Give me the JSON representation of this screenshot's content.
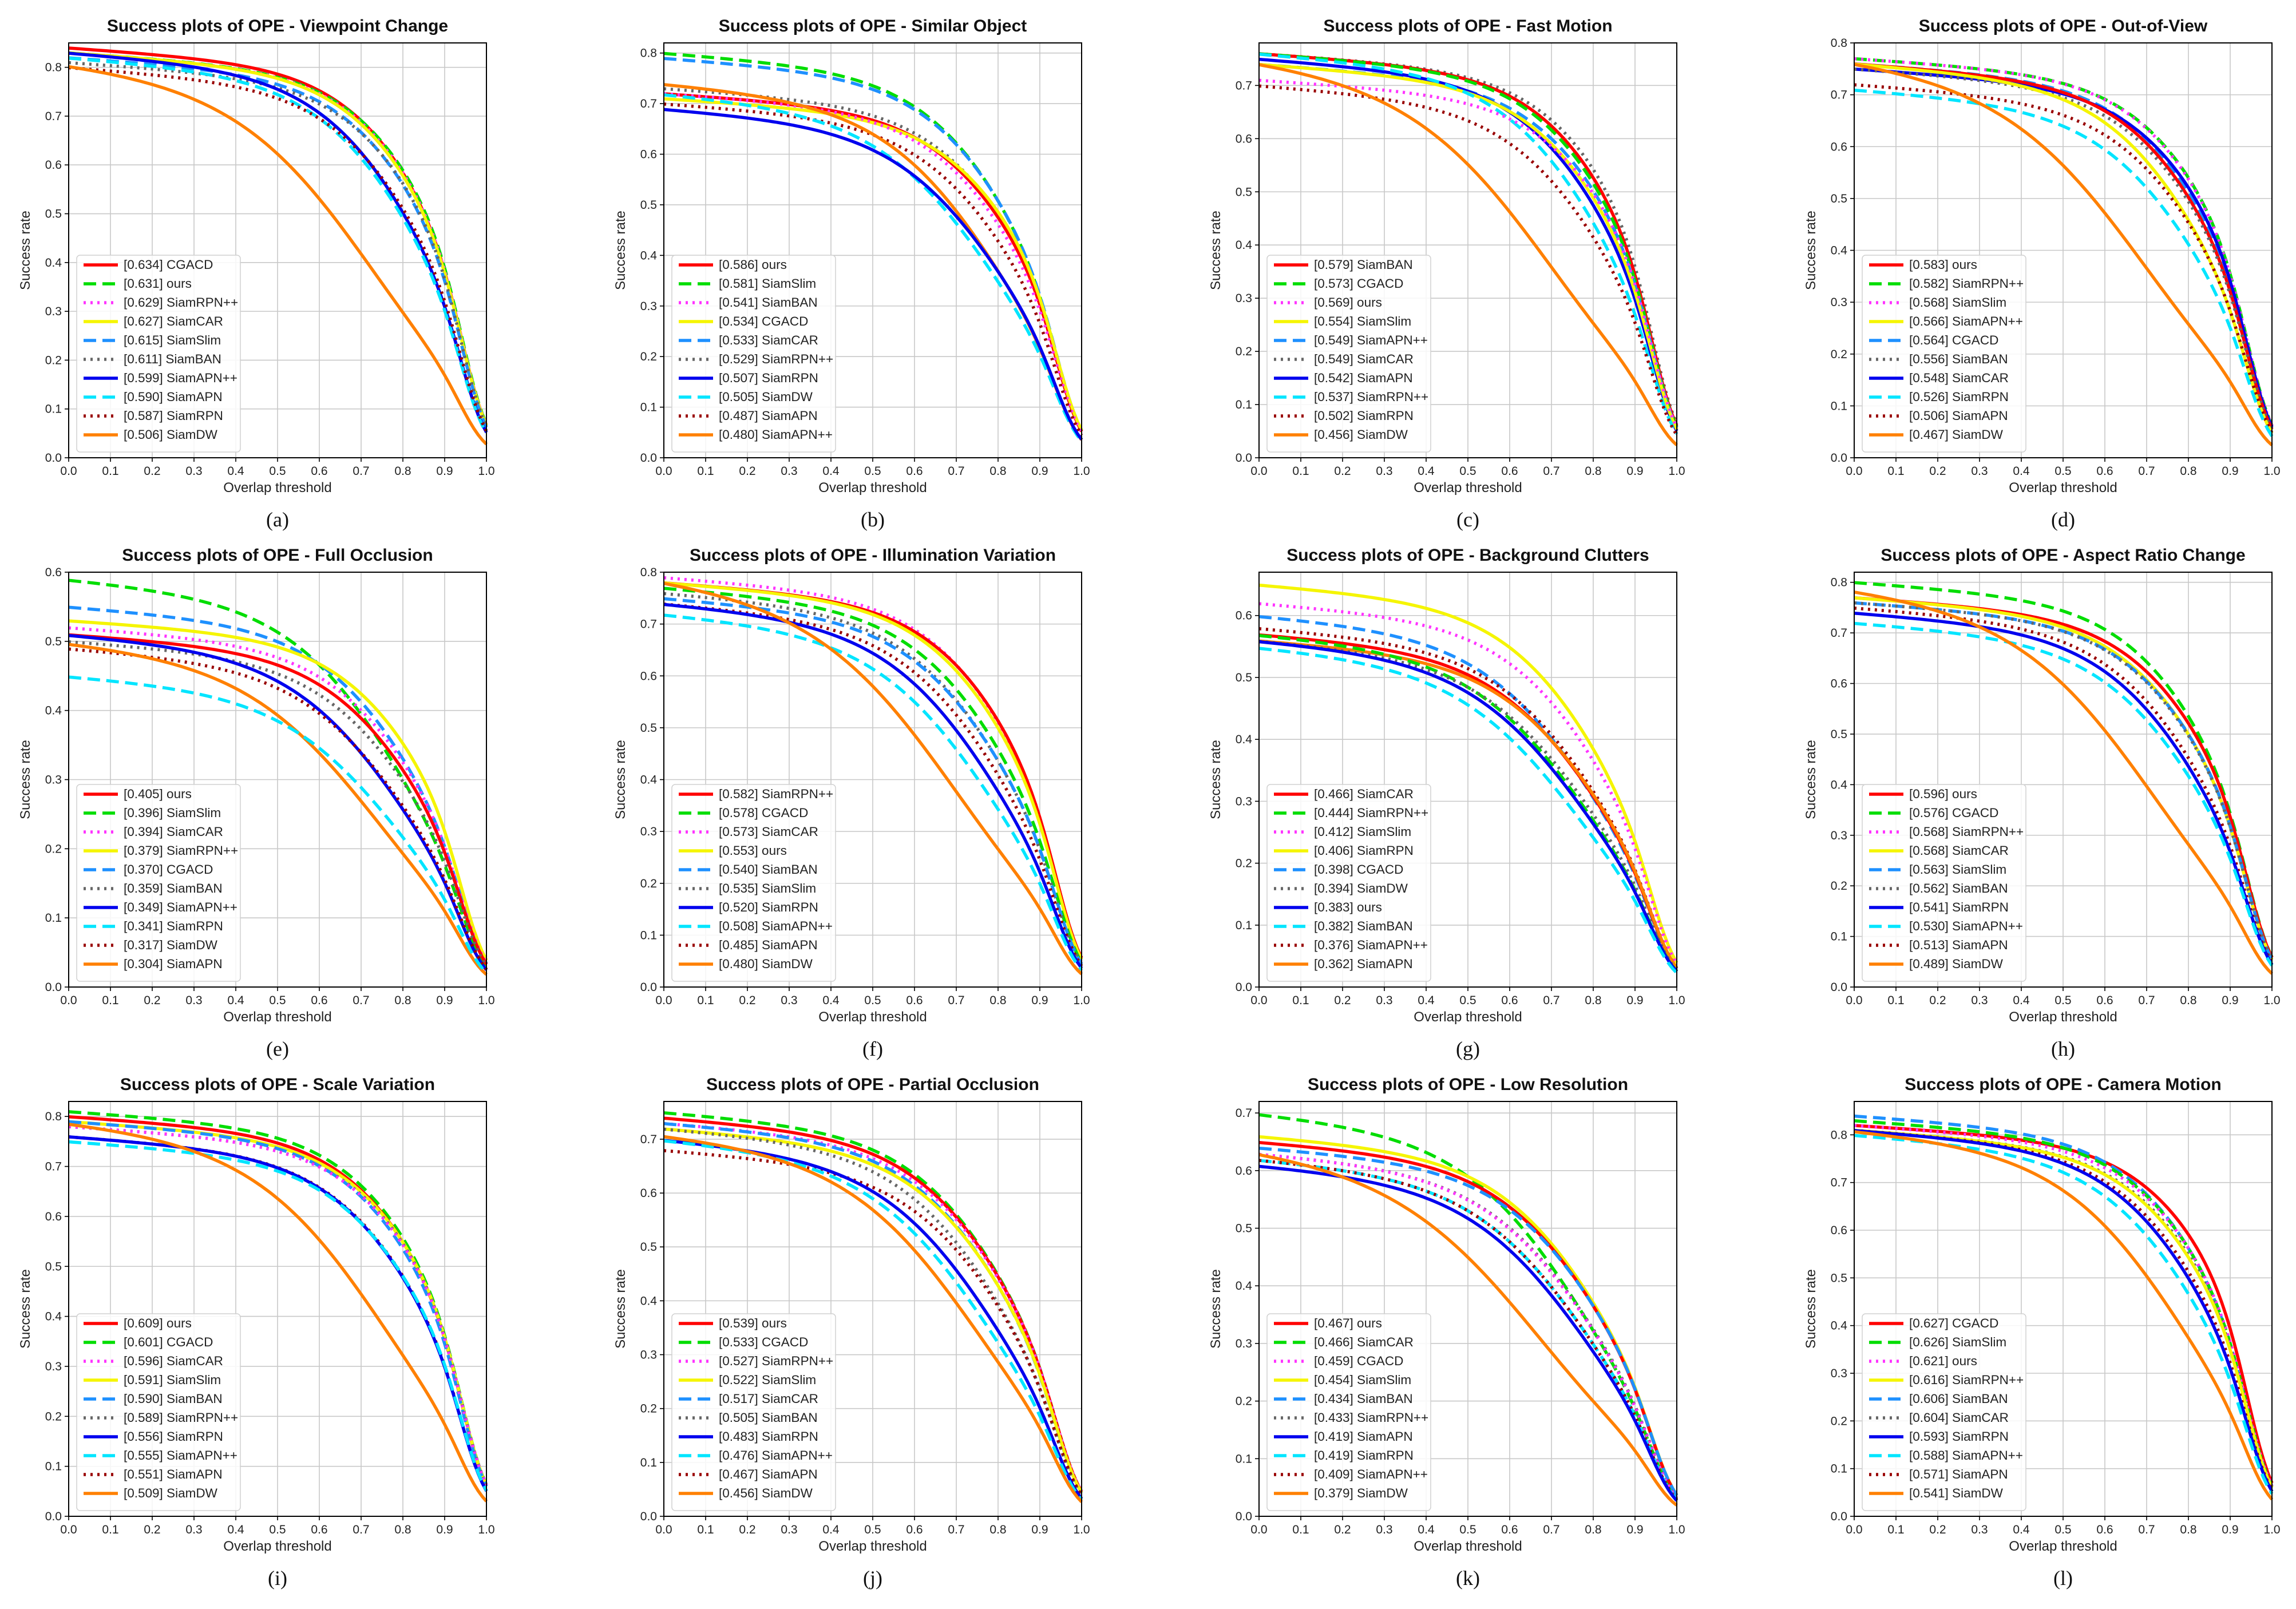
{
  "figure": {
    "xlabel": "Overlap threshold",
    "ylabel": "Success rate",
    "xticks": [
      "0.0",
      "0.1",
      "0.2",
      "0.3",
      "0.4",
      "0.5",
      "0.6",
      "0.7",
      "0.8",
      "0.9",
      "1.0"
    ]
  },
  "styles": {
    "CGACD": {
      "color": "#ff0000",
      "dash": "solid"
    },
    "ours": {
      "color": "#00dd00",
      "dash": "dashed"
    },
    "SiamRPN++": {
      "color": "#ff33ff",
      "dash": "dotted"
    },
    "SiamCAR": {
      "color": "#f5f500",
      "dash": "solid"
    },
    "SiamSlim": {
      "color": "#1e90ff",
      "dash": "dashed"
    },
    "SiamBAN": {
      "color": "#666666",
      "dash": "dotted"
    },
    "SiamAPN++": {
      "color": "#0000ee",
      "dash": "solid"
    },
    "SiamAPN": {
      "color": "#00e5ff",
      "dash": "dashed"
    },
    "SiamRPN": {
      "color": "#990000",
      "dash": "dotted"
    },
    "SiamDW": {
      "color": "#ff8000",
      "dash": "solid"
    }
  },
  "legend_styles": [
    {
      "color": "#ff0000",
      "dash": "solid"
    },
    {
      "color": "#00dd00",
      "dash": "dashed"
    },
    {
      "color": "#ff33ff",
      "dash": "dotted"
    },
    {
      "color": "#f5f500",
      "dash": "solid"
    },
    {
      "color": "#1e90ff",
      "dash": "dashed"
    },
    {
      "color": "#666666",
      "dash": "dotted"
    },
    {
      "color": "#0000ee",
      "dash": "solid"
    },
    {
      "color": "#00e5ff",
      "dash": "dashed"
    },
    {
      "color": "#990000",
      "dash": "dotted"
    },
    {
      "color": "#ff8000",
      "dash": "solid"
    }
  ],
  "chart_data": [
    {
      "type": "line",
      "subtitle": "(a)",
      "title": "Success plots of OPE - Viewpoint Change",
      "ylim": [
        0,
        0.85
      ],
      "yticks": [
        "0.0",
        "0.1",
        "0.2",
        "0.3",
        "0.4",
        "0.5",
        "0.6",
        "0.7",
        "0.8"
      ],
      "series": [
        {
          "legend": "[0.634] CGACD",
          "name": "CGACD",
          "y0": 0.84
        },
        {
          "legend": "[0.631] ours",
          "name": "ours",
          "y0": 0.83
        },
        {
          "legend": "[0.629] SiamRPN++",
          "name": "SiamRPN++",
          "y0": 0.83
        },
        {
          "legend": "[0.627] SiamCAR",
          "name": "SiamCAR",
          "y0": 0.83
        },
        {
          "legend": "[0.615] SiamSlim",
          "name": "SiamSlim",
          "y0": 0.82
        },
        {
          "legend": "[0.611] SiamBAN",
          "name": "SiamBAN",
          "y0": 0.81
        },
        {
          "legend": "[0.599] SiamAPN++",
          "name": "SiamAPN++",
          "y0": 0.83
        },
        {
          "legend": "[0.590] SiamAPN",
          "name": "SiamAPN",
          "y0": 0.82
        },
        {
          "legend": "[0.587] SiamRPN",
          "name": "SiamRPN",
          "y0": 0.8
        },
        {
          "legend": "[0.506] SiamDW",
          "name": "SiamDW",
          "y0": 0.81
        }
      ]
    },
    {
      "type": "line",
      "subtitle": "(b)",
      "title": "Success plots of OPE - Similar Object",
      "ylim": [
        0,
        0.82
      ],
      "yticks": [
        "0.0",
        "0.1",
        "0.2",
        "0.3",
        "0.4",
        "0.5",
        "0.6",
        "0.7",
        "0.8"
      ],
      "series": [
        {
          "legend": "[0.586] ours",
          "name": "ours",
          "y0": 0.8
        },
        {
          "legend": "[0.581] SiamSlim",
          "name": "SiamSlim",
          "y0": 0.79
        },
        {
          "legend": "[0.541] SiamBAN",
          "name": "SiamBAN",
          "y0": 0.73
        },
        {
          "legend": "[0.534] CGACD",
          "name": "CGACD",
          "y0": 0.72
        },
        {
          "legend": "[0.533] SiamCAR",
          "name": "SiamCAR",
          "y0": 0.71
        },
        {
          "legend": "[0.529] SiamRPN++",
          "name": "SiamRPN++",
          "y0": 0.72
        },
        {
          "legend": "[0.507] SiamRPN",
          "name": "SiamRPN",
          "y0": 0.7
        },
        {
          "legend": "[0.505] SiamDW",
          "name": "SiamDW",
          "y0": 0.74
        },
        {
          "legend": "[0.487] SiamAPN",
          "name": "SiamAPN",
          "y0": 0.72
        },
        {
          "legend": "[0.480] SiamAPN++",
          "name": "SiamAPN++",
          "y0": 0.69
        }
      ]
    },
    {
      "type": "line",
      "subtitle": "(c)",
      "title": "Success plots of OPE - Fast Motion",
      "ylim": [
        0,
        0.78
      ],
      "yticks": [
        "0.0",
        "0.1",
        "0.2",
        "0.3",
        "0.4",
        "0.5",
        "0.6",
        "0.7"
      ],
      "series": [
        {
          "legend": "[0.579] SiamBAN",
          "name": "SiamBAN",
          "y0": 0.76
        },
        {
          "legend": "[0.573] CGACD",
          "name": "CGACD",
          "y0": 0.76
        },
        {
          "legend": "[0.569] ours",
          "name": "ours",
          "y0": 0.76
        },
        {
          "legend": "[0.554] SiamSlim",
          "name": "SiamSlim",
          "y0": 0.74
        },
        {
          "legend": "[0.549] SiamAPN++",
          "name": "SiamAPN++",
          "y0": 0.75
        },
        {
          "legend": "[0.549] SiamCAR",
          "name": "SiamCAR",
          "y0": 0.74
        },
        {
          "legend": "[0.542] SiamAPN",
          "name": "SiamAPN",
          "y0": 0.76
        },
        {
          "legend": "[0.537] SiamRPN++",
          "name": "SiamRPN++",
          "y0": 0.71
        },
        {
          "legend": "[0.502] SiamRPN",
          "name": "SiamRPN",
          "y0": 0.7
        },
        {
          "legend": "[0.456] SiamDW",
          "name": "SiamDW",
          "y0": 0.75
        }
      ]
    },
    {
      "type": "line",
      "subtitle": "(d)",
      "title": "Success plots of OPE - Out-of-View",
      "ylim": [
        0,
        0.8
      ],
      "yticks": [
        "0.0",
        "0.1",
        "0.2",
        "0.3",
        "0.4",
        "0.5",
        "0.6",
        "0.7",
        "0.8"
      ],
      "series": [
        {
          "legend": "[0.583] ours",
          "name": "ours",
          "y0": 0.77
        },
        {
          "legend": "[0.582] SiamRPN++",
          "name": "SiamRPN++",
          "y0": 0.77
        },
        {
          "legend": "[0.568] SiamSlim",
          "name": "SiamSlim",
          "y0": 0.76
        },
        {
          "legend": "[0.566] SiamAPN++",
          "name": "SiamAPN++",
          "y0": 0.75
        },
        {
          "legend": "[0.564] CGACD",
          "name": "CGACD",
          "y0": 0.76
        },
        {
          "legend": "[0.556] SiamBAN",
          "name": "SiamBAN",
          "y0": 0.75
        },
        {
          "legend": "[0.548] SiamCAR",
          "name": "SiamCAR",
          "y0": 0.76
        },
        {
          "legend": "[0.526] SiamRPN",
          "name": "SiamRPN",
          "y0": 0.72
        },
        {
          "legend": "[0.506] SiamAPN",
          "name": "SiamAPN",
          "y0": 0.71
        },
        {
          "legend": "[0.467] SiamDW",
          "name": "SiamDW",
          "y0": 0.77
        }
      ]
    },
    {
      "type": "line",
      "subtitle": "(e)",
      "title": "Success plots of OPE - Full Occlusion",
      "ylim": [
        0,
        0.6
      ],
      "yticks": [
        "0.0",
        "0.1",
        "0.2",
        "0.3",
        "0.4",
        "0.5",
        "0.6"
      ],
      "series": [
        {
          "legend": "[0.405] ours",
          "name": "ours",
          "y0": 0.59
        },
        {
          "legend": "[0.396] SiamSlim",
          "name": "SiamSlim",
          "y0": 0.55
        },
        {
          "legend": "[0.394] SiamCAR",
          "name": "SiamCAR",
          "y0": 0.53
        },
        {
          "legend": "[0.379] SiamRPN++",
          "name": "SiamRPN++",
          "y0": 0.52
        },
        {
          "legend": "[0.370] CGACD",
          "name": "CGACD",
          "y0": 0.51
        },
        {
          "legend": "[0.359] SiamBAN",
          "name": "SiamBAN",
          "y0": 0.5
        },
        {
          "legend": "[0.349] SiamAPN++",
          "name": "SiamAPN++",
          "y0": 0.51
        },
        {
          "legend": "[0.341] SiamRPN",
          "name": "SiamRPN",
          "y0": 0.49
        },
        {
          "legend": "[0.317] SiamDW",
          "name": "SiamDW",
          "y0": 0.5
        },
        {
          "legend": "[0.304] SiamAPN",
          "name": "SiamAPN",
          "y0": 0.45
        }
      ]
    },
    {
      "type": "line",
      "subtitle": "(f)",
      "title": "Success plots of OPE - Illumination Variation",
      "ylim": [
        0,
        0.8
      ],
      "yticks": [
        "0.0",
        "0.1",
        "0.2",
        "0.3",
        "0.4",
        "0.5",
        "0.6",
        "0.7",
        "0.8"
      ],
      "series": [
        {
          "legend": "[0.582] SiamRPN++",
          "name": "SiamRPN++",
          "y0": 0.79
        },
        {
          "legend": "[0.578] CGACD",
          "name": "CGACD",
          "y0": 0.78
        },
        {
          "legend": "[0.573] SiamCAR",
          "name": "SiamCAR",
          "y0": 0.78
        },
        {
          "legend": "[0.553] ours",
          "name": "ours",
          "y0": 0.77
        },
        {
          "legend": "[0.540] SiamBAN",
          "name": "SiamBAN",
          "y0": 0.76
        },
        {
          "legend": "[0.535] SiamSlim",
          "name": "SiamSlim",
          "y0": 0.75
        },
        {
          "legend": "[0.520] SiamRPN",
          "name": "SiamRPN",
          "y0": 0.74
        },
        {
          "legend": "[0.508] SiamAPN++",
          "name": "SiamAPN++",
          "y0": 0.74
        },
        {
          "legend": "[0.485] SiamAPN",
          "name": "SiamAPN",
          "y0": 0.72
        },
        {
          "legend": "[0.480] SiamDW",
          "name": "SiamDW",
          "y0": 0.79
        }
      ]
    },
    {
      "type": "line",
      "subtitle": "(g)",
      "title": "Success plots of OPE - Background Clutters",
      "ylim": [
        0,
        0.67
      ],
      "yticks": [
        "0.0",
        "0.1",
        "0.2",
        "0.3",
        "0.4",
        "0.5",
        "0.6"
      ],
      "series": [
        {
          "legend": "[0.466] SiamCAR",
          "name": "SiamCAR",
          "y0": 0.65
        },
        {
          "legend": "[0.444] SiamRPN++",
          "name": "SiamRPN++",
          "y0": 0.62
        },
        {
          "legend": "[0.412] SiamSlim",
          "name": "SiamSlim",
          "y0": 0.6
        },
        {
          "legend": "[0.406] SiamRPN",
          "name": "SiamRPN",
          "y0": 0.58
        },
        {
          "legend": "[0.398] CGACD",
          "name": "CGACD",
          "y0": 0.57
        },
        {
          "legend": "[0.394] SiamDW",
          "name": "SiamDW",
          "y0": 0.56
        },
        {
          "legend": "[0.383] ours",
          "name": "ours",
          "y0": 0.57
        },
        {
          "legend": "[0.382] SiamBAN",
          "name": "SiamBAN",
          "y0": 0.56
        },
        {
          "legend": "[0.376] SiamAPN++",
          "name": "SiamAPN++",
          "y0": 0.56
        },
        {
          "legend": "[0.362] SiamAPN",
          "name": "SiamAPN",
          "y0": 0.55
        }
      ]
    },
    {
      "type": "line",
      "subtitle": "(h)",
      "title": "Success plots of OPE - Aspect Ratio Change",
      "ylim": [
        0,
        0.82
      ],
      "yticks": [
        "0.0",
        "0.1",
        "0.2",
        "0.3",
        "0.4",
        "0.5",
        "0.6",
        "0.7",
        "0.8"
      ],
      "series": [
        {
          "legend": "[0.596] ours",
          "name": "ours",
          "y0": 0.8
        },
        {
          "legend": "[0.576] CGACD",
          "name": "CGACD",
          "y0": 0.77
        },
        {
          "legend": "[0.568] SiamRPN++",
          "name": "SiamRPN++",
          "y0": 0.77
        },
        {
          "legend": "[0.568] SiamCAR",
          "name": "SiamCAR",
          "y0": 0.77
        },
        {
          "legend": "[0.563] SiamSlim",
          "name": "SiamSlim",
          "y0": 0.76
        },
        {
          "legend": "[0.562] SiamBAN",
          "name": "SiamBAN",
          "y0": 0.76
        },
        {
          "legend": "[0.541] SiamRPN",
          "name": "SiamRPN",
          "y0": 0.75
        },
        {
          "legend": "[0.530] SiamAPN++",
          "name": "SiamAPN++",
          "y0": 0.74
        },
        {
          "legend": "[0.513] SiamAPN",
          "name": "SiamAPN",
          "y0": 0.72
        },
        {
          "legend": "[0.489] SiamDW",
          "name": "SiamDW",
          "y0": 0.79
        }
      ]
    },
    {
      "type": "line",
      "subtitle": "(i)",
      "title": "Success plots of OPE - Scale Variation",
      "ylim": [
        0,
        0.83
      ],
      "yticks": [
        "0.0",
        "0.1",
        "0.2",
        "0.3",
        "0.4",
        "0.5",
        "0.6",
        "0.7",
        "0.8"
      ],
      "series": [
        {
          "legend": "[0.609] ours",
          "name": "ours",
          "y0": 0.81
        },
        {
          "legend": "[0.601] CGACD",
          "name": "CGACD",
          "y0": 0.8
        },
        {
          "legend": "[0.596] SiamCAR",
          "name": "SiamCAR",
          "y0": 0.79
        },
        {
          "legend": "[0.591] SiamSlim",
          "name": "SiamSlim",
          "y0": 0.79
        },
        {
          "legend": "[0.590] SiamBAN",
          "name": "SiamBAN",
          "y0": 0.78
        },
        {
          "legend": "[0.589] SiamRPN++",
          "name": "SiamRPN++",
          "y0": 0.78
        },
        {
          "legend": "[0.556] SiamRPN",
          "name": "SiamRPN",
          "y0": 0.76
        },
        {
          "legend": "[0.555] SiamAPN++",
          "name": "SiamAPN++",
          "y0": 0.76
        },
        {
          "legend": "[0.551] SiamAPN",
          "name": "SiamAPN",
          "y0": 0.75
        },
        {
          "legend": "[0.509] SiamDW",
          "name": "SiamDW",
          "y0": 0.79
        }
      ]
    },
    {
      "type": "line",
      "subtitle": "(j)",
      "title": "Success plots of OPE - Partial Occlusion",
      "ylim": [
        0,
        0.77
      ],
      "yticks": [
        "0.0",
        "0.1",
        "0.2",
        "0.3",
        "0.4",
        "0.5",
        "0.6",
        "0.7"
      ],
      "series": [
        {
          "legend": "[0.539] ours",
          "name": "ours",
          "y0": 0.75
        },
        {
          "legend": "[0.533] CGACD",
          "name": "CGACD",
          "y0": 0.74
        },
        {
          "legend": "[0.527] SiamRPN++",
          "name": "SiamRPN++",
          "y0": 0.73
        },
        {
          "legend": "[0.522] SiamSlim",
          "name": "SiamSlim",
          "y0": 0.73
        },
        {
          "legend": "[0.517] SiamCAR",
          "name": "SiamCAR",
          "y0": 0.72
        },
        {
          "legend": "[0.505] SiamBAN",
          "name": "SiamBAN",
          "y0": 0.72
        },
        {
          "legend": "[0.483] SiamRPN",
          "name": "SiamRPN",
          "y0": 0.68
        },
        {
          "legend": "[0.476] SiamAPN++",
          "name": "SiamAPN++",
          "y0": 0.7
        },
        {
          "legend": "[0.467] SiamAPN",
          "name": "SiamAPN",
          "y0": 0.7
        },
        {
          "legend": "[0.456] SiamDW",
          "name": "SiamDW",
          "y0": 0.71
        }
      ]
    },
    {
      "type": "line",
      "subtitle": "(k)",
      "title": "Success plots of OPE - Low Resolution",
      "ylim": [
        0,
        0.72
      ],
      "yticks": [
        "0.0",
        "0.1",
        "0.2",
        "0.3",
        "0.4",
        "0.5",
        "0.6",
        "0.7"
      ],
      "series": [
        {
          "legend": "[0.467] ours",
          "name": "ours",
          "y0": 0.7
        },
        {
          "legend": "[0.466] SiamCAR",
          "name": "SiamCAR",
          "y0": 0.66
        },
        {
          "legend": "[0.459] CGACD",
          "name": "CGACD",
          "y0": 0.65
        },
        {
          "legend": "[0.454] SiamSlim",
          "name": "SiamSlim",
          "y0": 0.64
        },
        {
          "legend": "[0.434] SiamBAN",
          "name": "SiamBAN",
          "y0": 0.63
        },
        {
          "legend": "[0.433] SiamRPN++",
          "name": "SiamRPN++",
          "y0": 0.63
        },
        {
          "legend": "[0.419] SiamAPN",
          "name": "SiamAPN",
          "y0": 0.62
        },
        {
          "legend": "[0.419] SiamRPN",
          "name": "SiamRPN",
          "y0": 0.62
        },
        {
          "legend": "[0.409] SiamAPN++",
          "name": "SiamAPN++",
          "y0": 0.61
        },
        {
          "legend": "[0.379] SiamDW",
          "name": "SiamDW",
          "y0": 0.64
        }
      ]
    },
    {
      "type": "line",
      "subtitle": "(l)",
      "title": "Success plots of OPE - Camera Motion",
      "ylim": [
        0,
        0.87
      ],
      "yticks": [
        "0.0",
        "0.1",
        "0.2",
        "0.3",
        "0.4",
        "0.5",
        "0.6",
        "0.7",
        "0.8"
      ],
      "series": [
        {
          "legend": "[0.627] CGACD",
          "name": "CGACD",
          "y0": 0.82
        },
        {
          "legend": "[0.626] SiamSlim",
          "name": "SiamSlim",
          "y0": 0.84
        },
        {
          "legend": "[0.621] ours",
          "name": "ours",
          "y0": 0.83
        },
        {
          "legend": "[0.616] SiamRPN++",
          "name": "SiamRPN++",
          "y0": 0.82
        },
        {
          "legend": "[0.606] SiamBAN",
          "name": "SiamBAN",
          "y0": 0.81
        },
        {
          "legend": "[0.604] SiamCAR",
          "name": "SiamCAR",
          "y0": 0.81
        },
        {
          "legend": "[0.593] SiamRPN",
          "name": "SiamRPN",
          "y0": 0.81
        },
        {
          "legend": "[0.588] SiamAPN++",
          "name": "SiamAPN++",
          "y0": 0.81
        },
        {
          "legend": "[0.571] SiamAPN",
          "name": "SiamAPN",
          "y0": 0.8
        },
        {
          "legend": "[0.541] SiamDW",
          "name": "SiamDW",
          "y0": 0.81
        }
      ]
    }
  ]
}
